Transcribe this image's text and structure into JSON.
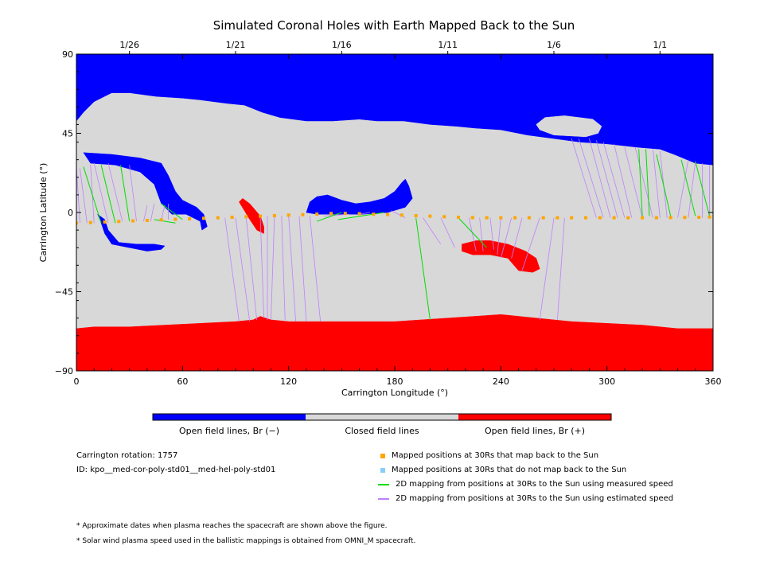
{
  "chart_data": {
    "type": "map",
    "title": "Simulated Coronal Holes with Earth Mapped Back to the Sun",
    "xlabel": "Carrington Longitude (°)",
    "ylabel": "Carrington Latitude (°)",
    "xlim": [
      0,
      360
    ],
    "ylim": [
      -90,
      90
    ],
    "x_ticks": [
      "0",
      "60",
      "120",
      "180",
      "240",
      "300",
      "360"
    ],
    "y_ticks": [
      "90",
      "45",
      "0",
      "−45",
      "−90"
    ],
    "top_axis_dates": [
      {
        "label": "1/26",
        "lon": 30
      },
      {
        "label": "1/21",
        "lon": 90
      },
      {
        "label": "1/16",
        "lon": 150
      },
      {
        "label": "1/11",
        "lon": 210
      },
      {
        "label": "1/6",
        "lon": 270
      },
      {
        "label": "1/1",
        "lon": 330
      }
    ],
    "colors": {
      "open_negative": "#0000ff",
      "closed": "#d8d8d8",
      "open_positive": "#ff0000",
      "mapped": "#ffa500",
      "unmapped": "#87cefa",
      "measured": "#00dd00",
      "estimated": "#c080ff"
    },
    "colorbar_labels": [
      "Open field lines, Br (−)",
      "Closed field lines",
      "Open field lines, Br (+)"
    ],
    "mapped_track": [
      [
        0,
        -6
      ],
      [
        8,
        -5.7
      ],
      [
        16,
        -5.4
      ],
      [
        24,
        -5.1
      ],
      [
        32,
        -4.8
      ],
      [
        40,
        -4.5
      ],
      [
        48,
        -4.2
      ],
      [
        56,
        -3.9
      ],
      [
        64,
        -3.6
      ],
      [
        72,
        -3.3
      ],
      [
        80,
        -3
      ],
      [
        88,
        -2.7
      ],
      [
        96,
        -2.4
      ],
      [
        104,
        -2.1
      ],
      [
        112,
        -1.8
      ],
      [
        120,
        -1.5
      ],
      [
        128,
        -1.2
      ],
      [
        136,
        -0.9
      ],
      [
        144,
        -0.6
      ],
      [
        152,
        -0.5
      ],
      [
        160,
        -0.7
      ],
      [
        168,
        -1.0
      ],
      [
        176,
        -1.2
      ],
      [
        184,
        -1.5
      ],
      [
        192,
        -1.8
      ],
      [
        200,
        -2.1
      ],
      [
        208,
        -2.4
      ],
      [
        216,
        -2.7
      ],
      [
        224,
        -2.9
      ],
      [
        232,
        -3.0
      ],
      [
        240,
        -3.0
      ],
      [
        248,
        -3.0
      ],
      [
        256,
        -3.0
      ],
      [
        264,
        -3.0
      ],
      [
        272,
        -3.0
      ],
      [
        280,
        -3.0
      ],
      [
        288,
        -3.0
      ],
      [
        296,
        -3.0
      ],
      [
        304,
        -3.0
      ],
      [
        312,
        -3.0
      ],
      [
        320,
        -3.0
      ],
      [
        328,
        -3.0
      ],
      [
        336,
        -2.9
      ],
      [
        344,
        -2.8
      ],
      [
        352,
        -2.7
      ],
      [
        358,
        -2.6
      ]
    ],
    "measured_links": [
      [
        [
          14,
          -6
        ],
        [
          4,
          26
        ]
      ],
      [
        [
          22,
          -6
        ],
        [
          14,
          27
        ]
      ],
      [
        [
          30,
          -5
        ],
        [
          25,
          27
        ]
      ],
      [
        [
          44,
          -4
        ],
        [
          56,
          -6
        ]
      ],
      [
        [
          60,
          -4
        ],
        [
          48,
          5
        ]
      ],
      [
        [
          136,
          -5
        ],
        [
          150,
          0
        ]
      ],
      [
        [
          148,
          -4
        ],
        [
          174,
          0
        ]
      ],
      [
        [
          192,
          -3
        ],
        [
          200,
          -61
        ]
      ],
      [
        [
          216,
          -3
        ],
        [
          232,
          -20
        ]
      ],
      [
        [
          320,
          -2
        ],
        [
          318,
          36
        ]
      ],
      [
        [
          324,
          -2
        ],
        [
          322,
          36
        ]
      ],
      [
        [
          336,
          -2
        ],
        [
          328,
          33
        ]
      ],
      [
        [
          350,
          -2
        ],
        [
          342,
          30
        ]
      ],
      [
        [
          358,
          -2
        ],
        [
          350,
          29
        ]
      ]
    ],
    "estimated_links": [
      [
        [
          2,
          -6
        ],
        [
          0,
          26
        ]
      ],
      [
        [
          6,
          -6
        ],
        [
          2,
          25
        ]
      ],
      [
        [
          10,
          -6
        ],
        [
          8,
          27
        ]
      ],
      [
        [
          18,
          -6
        ],
        [
          10,
          28
        ]
      ],
      [
        [
          26,
          -5
        ],
        [
          18,
          28
        ]
      ],
      [
        [
          34,
          -5
        ],
        [
          30,
          27
        ]
      ],
      [
        [
          38,
          -5
        ],
        [
          40,
          4
        ]
      ],
      [
        [
          42,
          -5
        ],
        [
          44,
          5
        ]
      ],
      [
        [
          48,
          -4
        ],
        [
          50,
          4
        ]
      ],
      [
        [
          52,
          -4
        ],
        [
          52,
          5
        ]
      ],
      [
        [
          84,
          -3
        ],
        [
          92,
          -62
        ]
      ],
      [
        [
          90,
          -3
        ],
        [
          98,
          -62
        ]
      ],
      [
        [
          96,
          -3
        ],
        [
          102,
          -61
        ]
      ],
      [
        [
          104,
          -3
        ],
        [
          106,
          -60
        ]
      ],
      [
        [
          108,
          -2
        ],
        [
          108,
          -61
        ]
      ],
      [
        [
          112,
          -2
        ],
        [
          110,
          -61
        ]
      ],
      [
        [
          116,
          -2
        ],
        [
          118,
          -61
        ]
      ],
      [
        [
          120,
          -2
        ],
        [
          124,
          -62
        ]
      ],
      [
        [
          126,
          -2
        ],
        [
          130,
          -62
        ]
      ],
      [
        [
          132,
          -2
        ],
        [
          138,
          -62
        ]
      ],
      [
        [
          140,
          -2
        ],
        [
          154,
          -1
        ]
      ],
      [
        [
          160,
          -1
        ],
        [
          166,
          0
        ]
      ],
      [
        [
          186,
          -3
        ],
        [
          178,
          1
        ]
      ],
      [
        [
          196,
          -3
        ],
        [
          206,
          -18
        ]
      ],
      [
        [
          206,
          -3
        ],
        [
          214,
          -20
        ]
      ],
      [
        [
          222,
          -3
        ],
        [
          226,
          -22
        ]
      ],
      [
        [
          228,
          -3
        ],
        [
          230,
          -22
        ]
      ],
      [
        [
          234,
          -3
        ],
        [
          236,
          -21
        ]
      ],
      [
        [
          240,
          -3
        ],
        [
          238,
          -24
        ]
      ],
      [
        [
          246,
          -3
        ],
        [
          240,
          -26
        ]
      ],
      [
        [
          252,
          -3
        ],
        [
          246,
          -26
        ]
      ],
      [
        [
          262,
          -3
        ],
        [
          252,
          -33
        ]
      ],
      [
        [
          270,
          -3
        ],
        [
          262,
          -61
        ]
      ],
      [
        [
          276,
          -3
        ],
        [
          272,
          -61
        ]
      ],
      [
        [
          294,
          -3
        ],
        [
          280,
          42
        ]
      ],
      [
        [
          298,
          -3
        ],
        [
          284,
          42
        ]
      ],
      [
        [
          302,
          -3
        ],
        [
          290,
          42
        ]
      ],
      [
        [
          306,
          -3
        ],
        [
          294,
          41
        ]
      ],
      [
        [
          310,
          -3
        ],
        [
          298,
          40
        ]
      ],
      [
        [
          314,
          -3
        ],
        [
          304,
          39
        ]
      ],
      [
        [
          320,
          -3
        ],
        [
          310,
          37
        ]
      ],
      [
        [
          326,
          -3
        ],
        [
          316,
          37
        ]
      ],
      [
        [
          330,
          -3
        ],
        [
          326,
          36
        ]
      ],
      [
        [
          334,
          -3
        ],
        [
          330,
          35
        ]
      ],
      [
        [
          340,
          -3
        ],
        [
          346,
          30
        ]
      ],
      [
        [
          346,
          -3
        ],
        [
          350,
          29
        ]
      ],
      [
        [
          354,
          -3
        ],
        [
          354,
          28
        ]
      ],
      [
        [
          358,
          -3
        ],
        [
          358,
          27
        ]
      ]
    ],
    "regions": {
      "north_negative": [
        [
          0,
          90
        ],
        [
          360,
          90
        ],
        [
          360,
          27
        ],
        [
          350,
          28
        ],
        [
          338,
          33
        ],
        [
          330,
          36
        ],
        [
          318,
          37
        ],
        [
          300,
          39
        ],
        [
          285,
          40
        ],
        [
          270,
          42
        ],
        [
          255,
          44
        ],
        [
          250,
          45
        ],
        [
          240,
          47
        ],
        [
          225,
          48
        ],
        [
          215,
          49
        ],
        [
          200,
          50
        ],
        [
          185,
          52
        ],
        [
          170,
          52
        ],
        [
          160,
          53
        ],
        [
          145,
          52
        ],
        [
          130,
          52
        ],
        [
          115,
          54
        ],
        [
          105,
          57
        ],
        [
          95,
          61
        ],
        [
          85,
          62
        ],
        [
          70,
          64
        ],
        [
          60,
          65
        ],
        [
          45,
          66
        ],
        [
          30,
          68
        ],
        [
          20,
          68
        ],
        [
          10,
          63
        ],
        [
          4,
          57
        ],
        [
          0,
          52
        ]
      ],
      "closed_cap_lobe": [
        [
          260,
          50
        ],
        [
          265,
          54
        ],
        [
          276,
          55
        ],
        [
          292,
          53
        ],
        [
          297,
          49
        ],
        [
          295,
          45
        ],
        [
          288,
          43
        ],
        [
          270,
          44
        ],
        [
          262,
          47
        ]
      ],
      "south_positive": [
        [
          0,
          -90
        ],
        [
          360,
          -90
        ],
        [
          360,
          -66
        ],
        [
          340,
          -66
        ],
        [
          320,
          -64
        ],
        [
          300,
          -63
        ],
        [
          280,
          -62
        ],
        [
          260,
          -60
        ],
        [
          240,
          -58
        ],
        [
          225,
          -59
        ],
        [
          210,
          -60
        ],
        [
          195,
          -61
        ],
        [
          180,
          -62
        ],
        [
          160,
          -62
        ],
        [
          140,
          -62
        ],
        [
          120,
          -62
        ],
        [
          110,
          -61
        ],
        [
          104,
          -59
        ],
        [
          100,
          -61
        ],
        [
          90,
          -62
        ],
        [
          70,
          -63
        ],
        [
          50,
          -64
        ],
        [
          30,
          -65
        ],
        [
          10,
          -65
        ],
        [
          0,
          -66
        ]
      ],
      "neg_hook": [
        [
          4,
          34
        ],
        [
          20,
          33
        ],
        [
          36,
          31
        ],
        [
          48,
          28
        ],
        [
          52,
          21
        ],
        [
          56,
          12
        ],
        [
          60,
          7
        ],
        [
          68,
          3
        ],
        [
          72,
          -1
        ],
        [
          74,
          -8
        ],
        [
          71,
          -10
        ],
        [
          70,
          -5
        ],
        [
          62,
          -1
        ],
        [
          54,
          -1
        ],
        [
          48,
          5
        ],
        [
          44,
          16
        ],
        [
          36,
          23
        ],
        [
          22,
          27
        ],
        [
          8,
          28
        ]
      ],
      "neg_blob_center": [
        [
          130,
          0
        ],
        [
          132,
          6
        ],
        [
          136,
          9
        ],
        [
          142,
          10
        ],
        [
          150,
          7
        ],
        [
          158,
          5
        ],
        [
          166,
          6
        ],
        [
          174,
          8
        ],
        [
          180,
          12
        ],
        [
          184,
          17
        ],
        [
          186,
          19
        ],
        [
          188,
          15
        ],
        [
          190,
          8
        ],
        [
          186,
          3
        ],
        [
          176,
          0
        ],
        [
          162,
          -1
        ],
        [
          146,
          -1
        ],
        [
          136,
          -1
        ]
      ],
      "neg_small": [
        [
          12,
          -1
        ],
        [
          14,
          -6
        ],
        [
          16,
          -12
        ],
        [
          20,
          -18
        ],
        [
          30,
          -20
        ],
        [
          40,
          -22
        ],
        [
          48,
          -21
        ],
        [
          50,
          -19
        ],
        [
          44,
          -18
        ],
        [
          34,
          -18
        ],
        [
          24,
          -17
        ],
        [
          18,
          -10
        ],
        [
          16,
          -4
        ]
      ],
      "pos_sliver": [
        [
          92,
          6
        ],
        [
          94,
          8
        ],
        [
          98,
          5
        ],
        [
          104,
          -2
        ],
        [
          106,
          -8
        ],
        [
          106,
          -12
        ],
        [
          102,
          -10
        ],
        [
          98,
          -4
        ]
      ],
      "pos_tail": [
        [
          218,
          -18
        ],
        [
          226,
          -16
        ],
        [
          234,
          -16
        ],
        [
          244,
          -18
        ],
        [
          254,
          -22
        ],
        [
          260,
          -26
        ],
        [
          262,
          -32
        ],
        [
          258,
          -34
        ],
        [
          250,
          -33
        ],
        [
          244,
          -26
        ],
        [
          234,
          -24
        ],
        [
          224,
          -24
        ],
        [
          218,
          -22
        ]
      ]
    }
  },
  "legend": {
    "items": [
      {
        "label": "Mapped positions at 30Rs that map back to the Sun",
        "kind": "square",
        "color": "#ffa500"
      },
      {
        "label": "Mapped positions at 30Rs that do not map back to the Sun",
        "kind": "square",
        "color": "#87cefa"
      },
      {
        "label": "2D mapping from positions at 30Rs to the Sun using measured speed",
        "kind": "line",
        "color": "#00dd00"
      },
      {
        "label": "2D mapping from positions at 30Rs to the Sun using estimated speed",
        "kind": "line",
        "color": "#c080ff"
      }
    ]
  },
  "info": {
    "rotation": "Carrington rotation: 1757",
    "id": "ID: kpo__med-cor-poly-std01__med-hel-poly-std01"
  },
  "notes": [
    "* Approximate dates when plasma reaches the spacecraft are shown above the figure.",
    "* Solar wind plasma speed used in the ballistic mappings is obtained from OMNI_M spacecraft."
  ]
}
